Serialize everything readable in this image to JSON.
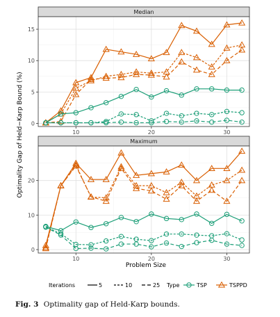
{
  "chart_data": {
    "type": "line",
    "xlabel": "Problem Size",
    "ylabel": "Optimality Gap of Held−Karp Bound (%)",
    "x": [
      6,
      8,
      10,
      12,
      14,
      16,
      18,
      20,
      22,
      24,
      26,
      28,
      30,
      32
    ],
    "x_ticks": [
      10,
      20,
      30
    ],
    "xlim": [
      5,
      33
    ],
    "grid": true,
    "legend_position": "bottom",
    "legend": {
      "iterations_title": "Iterations",
      "iterations": [
        "5",
        "10",
        "25"
      ],
      "type_title": "Type",
      "types": [
        "TSP",
        "TSPPD"
      ]
    },
    "colors": {
      "TSP": "#1b9e77",
      "TSPPD": "#d95f02"
    },
    "panels": [
      {
        "title": "Median",
        "ylim": [
          -0.5,
          17
        ],
        "y_ticks": [
          0,
          5,
          10,
          15
        ],
        "series": [
          {
            "name": "TSPPD",
            "iterations": "5",
            "values": [
              0.1,
              2.0,
              6.5,
              7.3,
              11.8,
              11.4,
              11.0,
              10.3,
              11.3,
              15.6,
              14.7,
              12.6,
              15.7,
              16.0
            ]
          },
          {
            "name": "TSPPD",
            "iterations": "10",
            "values": [
              0.1,
              1.5,
              5.6,
              6.8,
              7.5,
              7.8,
              8.2,
              8.0,
              8.2,
              11.3,
              10.5,
              9.0,
              12.0,
              12.5
            ]
          },
          {
            "name": "TSPPD",
            "iterations": "25",
            "values": [
              0.1,
              0.3,
              4.6,
              7.0,
              7.2,
              7.3,
              7.8,
              7.7,
              7.4,
              9.8,
              8.5,
              7.8,
              10.0,
              11.7
            ]
          },
          {
            "name": "TSP",
            "iterations": "5",
            "values": [
              0.1,
              1.5,
              1.7,
              2.5,
              3.3,
              4.3,
              5.4,
              4.2,
              5.2,
              4.5,
              5.5,
              5.5,
              5.3,
              5.3
            ]
          },
          {
            "name": "TSP",
            "iterations": "10",
            "values": [
              0.1,
              0.1,
              0.1,
              0.1,
              0.3,
              1.5,
              1.4,
              0.4,
              1.6,
              1.2,
              1.6,
              1.4,
              1.9,
              1.7
            ]
          },
          {
            "name": "TSP",
            "iterations": "25",
            "values": [
              0.1,
              0.1,
              0.1,
              0.1,
              0.1,
              0.2,
              0.1,
              0.1,
              0.3,
              0.2,
              0.4,
              0.2,
              0.5,
              0.2
            ]
          }
        ]
      },
      {
        "title": "Maximum",
        "ylim": [
          -1,
          30
        ],
        "y_ticks": [
          0,
          10,
          20
        ],
        "series": [
          {
            "name": "TSPPD",
            "iterations": "5",
            "values": [
              1.2,
              18.5,
              25.0,
              20.3,
              20.3,
              28.0,
              21.5,
              22.0,
              22.5,
              24.5,
              20.0,
              23.5,
              23.5,
              28.5
            ]
          },
          {
            "name": "TSPPD",
            "iterations": "10",
            "values": [
              0.6,
              18.5,
              24.5,
              15.2,
              15.0,
              24.0,
              18.5,
              18.5,
              16.5,
              19.5,
              15.5,
              18.7,
              20.0,
              23.0
            ]
          },
          {
            "name": "TSPPD",
            "iterations": "25",
            "values": [
              0.3,
              18.5,
              24.2,
              15.3,
              14.0,
              23.5,
              17.7,
              17.0,
              14.6,
              18.5,
              14.0,
              17.2,
              14.0,
              20.0
            ]
          },
          {
            "name": "TSP",
            "iterations": "5",
            "values": [
              6.7,
              5.5,
              8.0,
              6.4,
              7.5,
              9.3,
              8.1,
              10.3,
              9.0,
              8.7,
              10.3,
              7.6,
              10.2,
              8.3
            ]
          },
          {
            "name": "TSP",
            "iterations": "10",
            "values": [
              6.6,
              4.6,
              1.5,
              1.4,
              2.5,
              3.8,
              3.0,
              2.6,
              4.5,
              4.5,
              4.2,
              4.0,
              4.6,
              2.8
            ]
          },
          {
            "name": "TSP",
            "iterations": "25",
            "values": [
              6.5,
              4.2,
              0.3,
              0.4,
              0.2,
              1.6,
              1.6,
              0.8,
              1.9,
              0.9,
              2.0,
              2.7,
              1.6,
              1.2
            ]
          }
        ]
      }
    ]
  },
  "caption": {
    "label": "Fig. 3",
    "text": "Optimality gap of Held-Karp bounds."
  }
}
